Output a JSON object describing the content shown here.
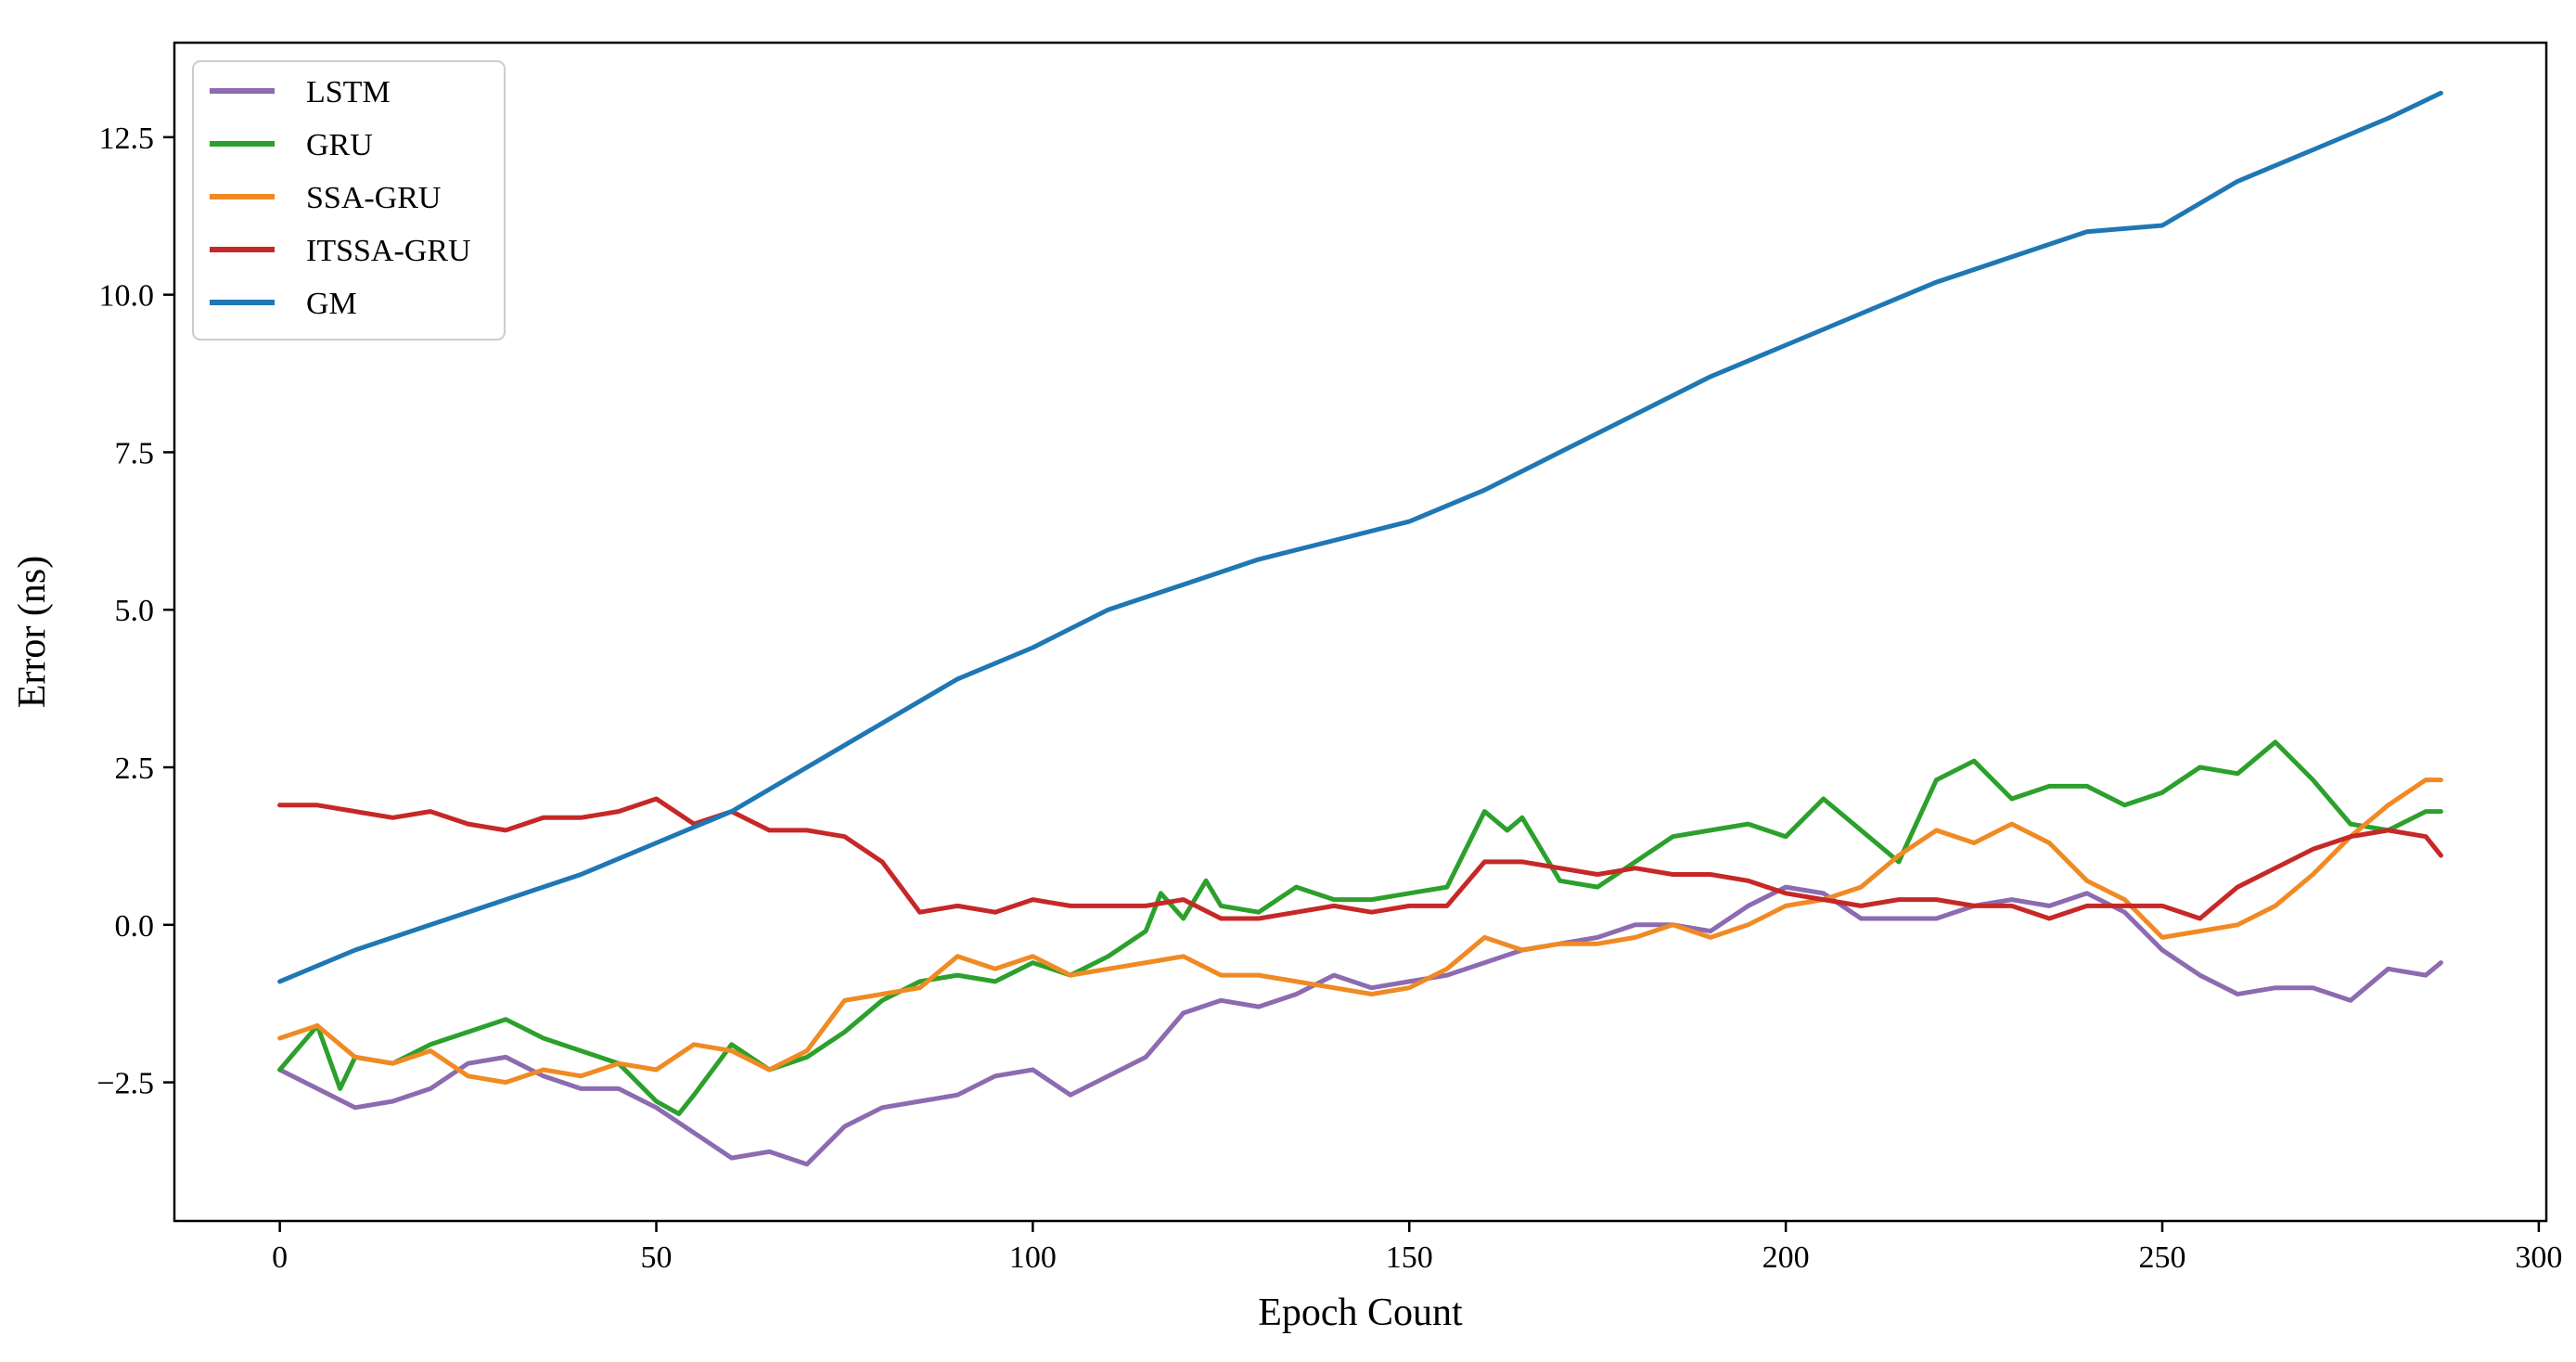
{
  "chart_data": {
    "type": "line",
    "title": "",
    "xlabel": "Epoch Count",
    "ylabel": "Error (ns)",
    "xlim": [
      -14,
      301
    ],
    "ylim": [
      -4.7,
      14.0
    ],
    "xticks": [
      0,
      50,
      100,
      150,
      200,
      250,
      300
    ],
    "yticks": [
      -2.5,
      0.0,
      2.5,
      5.0,
      7.5,
      10.0,
      12.5
    ],
    "xtick_labels": [
      "0",
      "50",
      "100",
      "150",
      "200",
      "250",
      "300"
    ],
    "ytick_labels": [
      "−2.5",
      "0.0",
      "2.5",
      "5.0",
      "7.5",
      "10.0",
      "12.5"
    ],
    "grid": false,
    "legend_position": "top-left",
    "series": [
      {
        "name": "LSTM",
        "color": "#8c6bb1",
        "x": [
          0,
          5,
          10,
          15,
          20,
          25,
          30,
          35,
          40,
          45,
          50,
          55,
          60,
          65,
          70,
          75,
          80,
          85,
          90,
          95,
          100,
          105,
          110,
          115,
          120,
          125,
          130,
          135,
          140,
          145,
          150,
          155,
          160,
          165,
          170,
          175,
          180,
          185,
          190,
          195,
          200,
          205,
          210,
          215,
          220,
          225,
          230,
          235,
          240,
          245,
          250,
          255,
          260,
          265,
          270,
          275,
          280,
          285,
          287
        ],
        "values": [
          -2.3,
          -2.6,
          -2.9,
          -2.8,
          -2.6,
          -2.2,
          -2.1,
          -2.4,
          -2.6,
          -2.6,
          -2.9,
          -3.3,
          -3.7,
          -3.6,
          -3.8,
          -3.2,
          -2.9,
          -2.8,
          -2.7,
          -2.4,
          -2.3,
          -2.7,
          -2.4,
          -2.1,
          -1.4,
          -1.2,
          -1.3,
          -1.1,
          -0.8,
          -1.0,
          -0.9,
          -0.8,
          -0.6,
          -0.4,
          -0.3,
          -0.2,
          0.0,
          0.0,
          -0.1,
          0.3,
          0.6,
          0.5,
          0.1,
          0.1,
          0.1,
          0.3,
          0.4,
          0.3,
          0.5,
          0.2,
          -0.4,
          -0.8,
          -1.1,
          -1.0,
          -1.0,
          -1.2,
          -0.7,
          -0.8,
          -0.6
        ]
      },
      {
        "name": "GRU",
        "color": "#2ca02c",
        "x": [
          0,
          5,
          8,
          10,
          15,
          20,
          25,
          30,
          35,
          40,
          45,
          50,
          53,
          55,
          60,
          65,
          70,
          75,
          80,
          85,
          90,
          95,
          100,
          105,
          110,
          115,
          117,
          120,
          123,
          125,
          130,
          135,
          140,
          145,
          150,
          155,
          160,
          163,
          165,
          170,
          175,
          180,
          185,
          190,
          195,
          200,
          205,
          210,
          215,
          220,
          225,
          230,
          235,
          240,
          245,
          250,
          255,
          260,
          265,
          270,
          275,
          280,
          285,
          287
        ],
        "values": [
          -2.3,
          -1.6,
          -2.6,
          -2.1,
          -2.2,
          -1.9,
          -1.7,
          -1.5,
          -1.8,
          -2.0,
          -2.2,
          -2.8,
          -3.0,
          -2.7,
          -1.9,
          -2.3,
          -2.1,
          -1.7,
          -1.2,
          -0.9,
          -0.8,
          -0.9,
          -0.6,
          -0.8,
          -0.5,
          -0.1,
          0.5,
          0.1,
          0.7,
          0.3,
          0.2,
          0.6,
          0.4,
          0.4,
          0.5,
          0.6,
          1.8,
          1.5,
          1.7,
          0.7,
          0.6,
          1.0,
          1.4,
          1.5,
          1.6,
          1.4,
          2.0,
          1.5,
          1.0,
          2.3,
          2.6,
          2.0,
          2.2,
          2.2,
          1.9,
          2.1,
          2.5,
          2.4,
          2.9,
          2.3,
          1.6,
          1.5,
          1.8,
          1.8
        ]
      },
      {
        "name": "SSA-GRU",
        "color": "#f08a24",
        "x": [
          0,
          5,
          10,
          15,
          20,
          25,
          30,
          35,
          40,
          45,
          50,
          55,
          60,
          65,
          70,
          75,
          80,
          85,
          90,
          95,
          100,
          105,
          110,
          115,
          120,
          125,
          130,
          135,
          140,
          145,
          150,
          155,
          160,
          165,
          170,
          175,
          180,
          185,
          190,
          195,
          200,
          205,
          210,
          215,
          220,
          225,
          230,
          235,
          240,
          245,
          250,
          255,
          260,
          265,
          270,
          275,
          280,
          285,
          287
        ],
        "values": [
          -1.8,
          -1.6,
          -2.1,
          -2.2,
          -2.0,
          -2.4,
          -2.5,
          -2.3,
          -2.4,
          -2.2,
          -2.3,
          -1.9,
          -2.0,
          -2.3,
          -2.0,
          -1.2,
          -1.1,
          -1.0,
          -0.5,
          -0.7,
          -0.5,
          -0.8,
          -0.7,
          -0.6,
          -0.5,
          -0.8,
          -0.8,
          -0.9,
          -1.0,
          -1.1,
          -1.0,
          -0.7,
          -0.2,
          -0.4,
          -0.3,
          -0.3,
          -0.2,
          0.0,
          -0.2,
          0.0,
          0.3,
          0.4,
          0.6,
          1.1,
          1.5,
          1.3,
          1.6,
          1.3,
          0.7,
          0.4,
          -0.2,
          -0.1,
          0.0,
          0.3,
          0.8,
          1.4,
          1.9,
          2.3,
          2.3
        ]
      },
      {
        "name": "ITSSA-GRU",
        "color": "#c62828",
        "x": [
          0,
          5,
          10,
          15,
          20,
          25,
          30,
          35,
          40,
          45,
          50,
          55,
          60,
          65,
          70,
          75,
          80,
          85,
          90,
          95,
          100,
          105,
          110,
          115,
          120,
          125,
          130,
          135,
          140,
          145,
          150,
          155,
          160,
          165,
          170,
          175,
          180,
          185,
          190,
          195,
          200,
          205,
          210,
          215,
          220,
          225,
          230,
          235,
          240,
          245,
          250,
          255,
          260,
          265,
          270,
          275,
          280,
          285,
          287
        ],
        "values": [
          1.9,
          1.9,
          1.8,
          1.7,
          1.8,
          1.6,
          1.5,
          1.7,
          1.7,
          1.8,
          2.0,
          1.6,
          1.8,
          1.5,
          1.5,
          1.4,
          1.0,
          0.2,
          0.3,
          0.2,
          0.4,
          0.3,
          0.3,
          0.3,
          0.4,
          0.1,
          0.1,
          0.2,
          0.3,
          0.2,
          0.3,
          0.3,
          1.0,
          1.0,
          0.9,
          0.8,
          0.9,
          0.8,
          0.8,
          0.7,
          0.5,
          0.4,
          0.3,
          0.4,
          0.4,
          0.3,
          0.3,
          0.1,
          0.3,
          0.3,
          0.3,
          0.1,
          0.6,
          0.9,
          1.2,
          1.4,
          1.5,
          1.4,
          1.1
        ]
      },
      {
        "name": "GM",
        "color": "#1f77b4",
        "x": [
          0,
          10,
          20,
          30,
          40,
          50,
          60,
          70,
          80,
          90,
          100,
          110,
          120,
          130,
          140,
          150,
          160,
          170,
          180,
          190,
          200,
          210,
          220,
          230,
          240,
          250,
          260,
          270,
          280,
          287
        ],
        "values": [
          -0.9,
          -0.4,
          0.0,
          0.4,
          0.8,
          1.3,
          1.8,
          2.5,
          3.2,
          3.9,
          4.4,
          5.0,
          5.4,
          5.8,
          6.1,
          6.4,
          6.9,
          7.5,
          8.1,
          8.7,
          9.2,
          9.7,
          10.2,
          10.6,
          11.0,
          11.1,
          11.8,
          12.3,
          12.8,
          13.2
        ]
      }
    ]
  }
}
